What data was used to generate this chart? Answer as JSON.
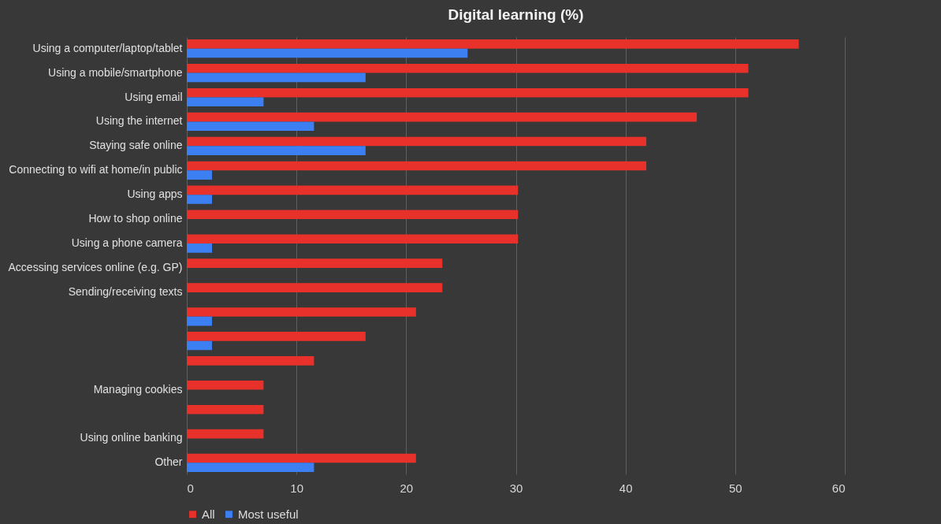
{
  "chart_data": {
    "type": "bar",
    "orientation": "horizontal",
    "title": "Digital learning (%)",
    "categories": [
      "Using a computer/laptop/tablet",
      "Using a mobile/smartphone",
      "Using email",
      "Using the internet",
      "Staying safe online",
      "Connecting to wifi at home/in public",
      "Using apps",
      "How to shop online",
      "Using a phone camera",
      "Accessing services online (e.g. GP)",
      "Sending/receiving texts",
      null,
      null,
      null,
      "Managing cookies",
      null,
      "Using online banking",
      "Other"
    ],
    "series": [
      {
        "name": "All",
        "color": "#e8312a",
        "values": [
          55.8,
          51.2,
          51.2,
          46.5,
          41.9,
          41.9,
          30.2,
          30.2,
          30.2,
          23.3,
          23.3,
          20.9,
          16.3,
          11.6,
          7.0,
          7.0,
          7.0,
          20.9
        ]
      },
      {
        "name": "Most useful",
        "color": "#3b7ff2",
        "values": [
          25.6,
          16.3,
          7.0,
          11.6,
          16.3,
          2.3,
          2.3,
          null,
          2.3,
          null,
          null,
          2.3,
          2.3,
          null,
          null,
          null,
          null,
          11.6
        ]
      }
    ],
    "xlim": [
      0,
      60
    ],
    "xticks": [
      0,
      10,
      20,
      30,
      40,
      50,
      60
    ],
    "grid": "x",
    "legend": "bottom"
  }
}
